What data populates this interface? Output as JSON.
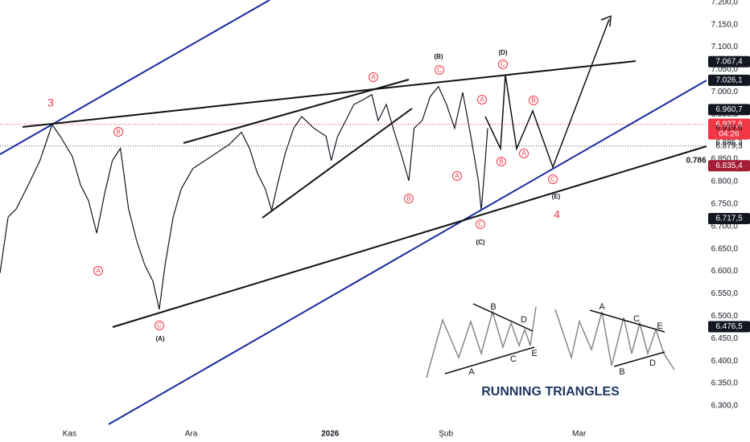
{
  "chart_data": {
    "type": "line",
    "x": [
      0,
      1.4,
      2.8,
      4.9,
      6.9,
      9,
      10.4,
      12.5,
      13.9,
      15.3,
      16.7,
      18.1,
      19.4,
      20.8,
      22.2,
      23.6,
      25,
      26.4,
      27.5,
      28.5,
      29.9,
      31.3,
      33.3,
      35.4,
      37.5,
      39.6,
      41.7,
      43.1,
      44.4,
      45.8,
      46.9,
      47.9,
      49.3,
      50.7,
      52.1,
      54.2,
      56.3,
      57.2,
      58.3,
      59.7,
      61.1,
      62.5,
      64.2,
      65.3,
      66.7,
      68.1,
      69.4,
      70.6,
      71.5,
      72.9,
      74.3,
      75.7,
      77.1,
      78.5,
      79.9,
      81.3,
      82.6,
      83.1,
      83.8,
      84.2
    ],
    "series": [
      {
        "color": "#131722",
        "values": [
          6596,
          6721,
          6739,
          6793,
          6847,
          6927,
          6901,
          6856,
          6793,
          6757,
          6685,
          6775,
          6847,
          6874,
          6739,
          6668,
          6614,
          6578,
          6515,
          6614,
          6721,
          6784,
          6829,
          6847,
          6865,
          6883,
          6910,
          6874,
          6820,
          6784,
          6736,
          6793,
          6865,
          6919,
          6945,
          6919,
          6901,
          6847,
          6901,
          6936,
          6972,
          6981,
          6994,
          6936,
          6972,
          6910,
          6856,
          6802,
          6919,
          6936,
          6990,
          7012,
          6972,
          6919,
          6999,
          6901,
          6802,
          6736,
          6847,
          6919
        ]
      }
    ],
    "xlim": [
      0,
      122
    ],
    "xticks": [
      {
        "value": 12,
        "label": "Kas"
      },
      {
        "value": 33,
        "label": "Ara"
      },
      {
        "value": 57,
        "label": "2026"
      },
      {
        "value": 77,
        "label": "Şub"
      },
      {
        "value": 100,
        "label": "Mar"
      }
    ],
    "ylim": [
      6291,
      7205
    ],
    "yticks": [
      {
        "value": 7200,
        "label": "7.200,0"
      },
      {
        "value": 7150,
        "label": "7.150,0"
      },
      {
        "value": 7100,
        "label": "7.100,0"
      },
      {
        "value": 7050,
        "label": "7.050,0"
      },
      {
        "value": 7000,
        "label": "7.000,0"
      },
      {
        "value": 6950,
        "label": "6.950,0"
      },
      {
        "value": 6900,
        "label": "6.900,0"
      },
      {
        "value": 6850,
        "label": "6.850,0"
      },
      {
        "value": 6800,
        "label": "6.800,0"
      },
      {
        "value": 6750,
        "label": "6.750,0"
      },
      {
        "value": 6700,
        "label": "6.700,0"
      },
      {
        "value": 6650,
        "label": "6.650,0"
      },
      {
        "value": 6600,
        "label": "6.600,0"
      },
      {
        "value": 6550,
        "label": "6.550,0"
      },
      {
        "value": 6500,
        "label": "6.500,0"
      },
      {
        "value": 6450,
        "label": "6.450,0"
      },
      {
        "value": 6400,
        "label": "6.400,0"
      },
      {
        "value": 6350,
        "label": "6.350,0"
      },
      {
        "value": 6300,
        "label": "6.300,0"
      }
    ],
    "price_tags": [
      {
        "value": 7067.4,
        "label": "7.067,4",
        "color": "#131722"
      },
      {
        "value": 7026.1,
        "label": "7.026,1",
        "color": "#131722"
      },
      {
        "value": 6960.7,
        "label": "6.960,7",
        "color": "#131722"
      },
      {
        "value": 6927.8,
        "label": "6.927,8",
        "sub": "04:26",
        "color": "#f23645",
        "dotted": true
      },
      {
        "value": 6919.6,
        "label": "6.919,6"
      },
      {
        "value": 6886.3,
        "label": "6.886,3"
      },
      {
        "value": 6879.3,
        "label": "6.879,3",
        "dotted": true
      },
      {
        "value": 6835.4,
        "label": "6.835,4",
        "color": "#a31d35"
      },
      {
        "value": 6717.5,
        "label": "6.717,5",
        "color": "#131722"
      },
      {
        "value": 6476.5,
        "label": "6.476,5",
        "color": "#131722"
      }
    ],
    "fib_label": "0.786",
    "circled_labels": [
      "A",
      "B",
      "C",
      "A",
      "C",
      "A",
      "B",
      "A",
      "B",
      "A",
      "B",
      "C",
      "C",
      "C"
    ],
    "wave_labels": [
      "(A)",
      "(B)",
      "(C)",
      "(D)",
      "(E)"
    ],
    "degree_labels": [
      "3",
      "4"
    ],
    "inset": {
      "title": "RUNNING TRIANGLES",
      "labels": [
        "B",
        "D",
        "A",
        "C",
        "E",
        "A",
        "C",
        "E",
        "B",
        "D"
      ]
    }
  }
}
